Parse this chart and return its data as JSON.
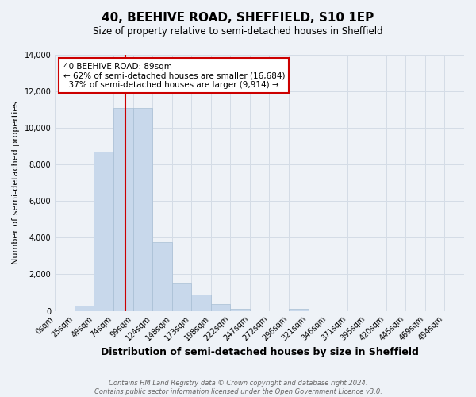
{
  "title": "40, BEEHIVE ROAD, SHEFFIELD, S10 1EP",
  "subtitle": "Size of property relative to semi-detached houses in Sheffield",
  "xlabel": "Distribution of semi-detached houses by size in Sheffield",
  "ylabel": "Number of semi-detached properties",
  "bar_labels": [
    "0sqm",
    "25sqm",
    "49sqm",
    "74sqm",
    "99sqm",
    "124sqm",
    "148sqm",
    "173sqm",
    "198sqm",
    "222sqm",
    "247sqm",
    "272sqm",
    "296sqm",
    "321sqm",
    "346sqm",
    "371sqm",
    "395sqm",
    "420sqm",
    "445sqm",
    "469sqm",
    "494sqm"
  ],
  "bar_values": [
    0,
    300,
    8700,
    11100,
    11100,
    3750,
    1500,
    900,
    380,
    130,
    0,
    0,
    120,
    0,
    0,
    0,
    0,
    0,
    0,
    0,
    0
  ],
  "bar_color": "#c8d8eb",
  "bar_edge_color": "#a8bfd4",
  "property_line_x": 3,
  "property_line_color": "#cc0000",
  "annotation_text": "40 BEEHIVE ROAD: 89sqm\n← 62% of semi-detached houses are smaller (16,684)\n  37% of semi-detached houses are larger (9,914) →",
  "annotation_box_color": "#ffffff",
  "annotation_box_edge": "#cc0000",
  "ylim": [
    0,
    14000
  ],
  "yticks": [
    0,
    2000,
    4000,
    6000,
    8000,
    10000,
    12000,
    14000
  ],
  "grid_color": "#d4dce6",
  "background_color": "#eef2f7",
  "footer": "Contains HM Land Registry data © Crown copyright and database right 2024.\nContains public sector information licensed under the Open Government Licence v3.0.",
  "title_fontsize": 11,
  "subtitle_fontsize": 8.5,
  "xlabel_fontsize": 9,
  "ylabel_fontsize": 8,
  "tick_fontsize": 7,
  "annotation_fontsize": 7.5
}
